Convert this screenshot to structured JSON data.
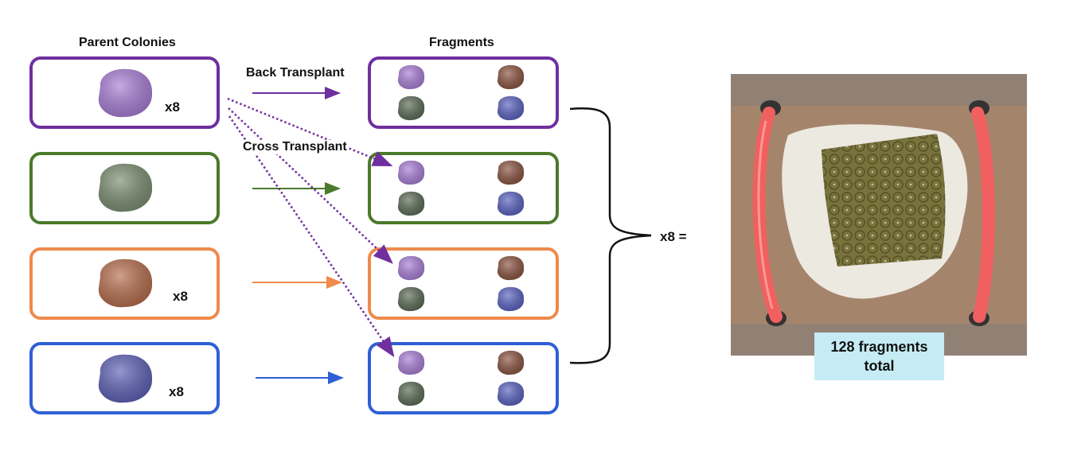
{
  "headers": {
    "parent_colonies": "Parent Colonies",
    "fragments": "Fragments"
  },
  "arrows": {
    "back_transplant": "Back Transplant",
    "cross_transplant": "Cross Transplant"
  },
  "parents": [
    {
      "color": "#a97ed6",
      "multiplier": "x8"
    },
    {
      "color": "#7c8f72",
      "multiplier": ""
    },
    {
      "color": "#b76e4e",
      "multiplier": "x8"
    },
    {
      "color": "#5d62b7",
      "multiplier": "x8"
    }
  ],
  "box_colors": [
    "#6f2f9f",
    "#4a7a2a",
    "#ee8a4a",
    "#2f5fd6"
  ],
  "fragment_colors": [
    "#a97ed6",
    "#8a5440",
    "#5b6b55",
    "#5a62c0"
  ],
  "total_multiplier": "x8 =",
  "photo": {
    "caption_line1": "128 fragments",
    "caption_line2": "total"
  }
}
